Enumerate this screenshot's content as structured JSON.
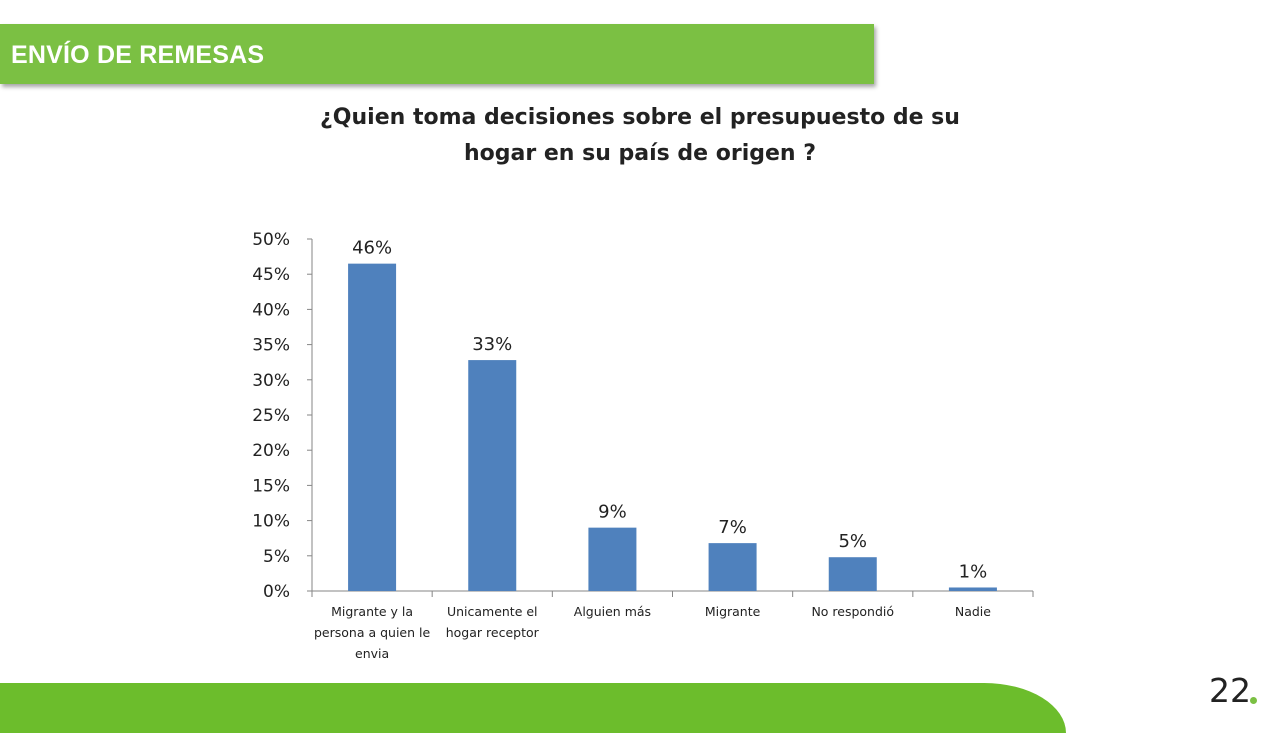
{
  "header": {
    "title": "ENVÍO DE REMESAS"
  },
  "footer": {
    "page_number": "22"
  },
  "colors": {
    "accent": "#7bc043",
    "bar": "#4f81bd",
    "footer": "#6cbd2c"
  },
  "chart_data": {
    "type": "bar",
    "title": "¿Quien toma decisiones sobre el presupuesto de su hogar en su país de origen ?",
    "categories": [
      [
        "Migrante y la",
        "persona a quien le",
        "envia"
      ],
      [
        "Unicamente el",
        "hogar receptor"
      ],
      [
        "Alguien más"
      ],
      [
        "Migrante"
      ],
      [
        "No respondió"
      ],
      [
        "Nadie"
      ]
    ],
    "values": [
      46.5,
      32.8,
      9.0,
      6.8,
      4.8,
      0.5
    ],
    "data_labels": [
      "46%",
      "33%",
      "9%",
      "7%",
      "5%",
      "1%"
    ],
    "yticks": [
      "0%",
      "5%",
      "10%",
      "15%",
      "20%",
      "25%",
      "30%",
      "35%",
      "40%",
      "45%",
      "50%"
    ],
    "ylim": [
      0,
      50
    ],
    "grid": false,
    "legend": "none"
  }
}
